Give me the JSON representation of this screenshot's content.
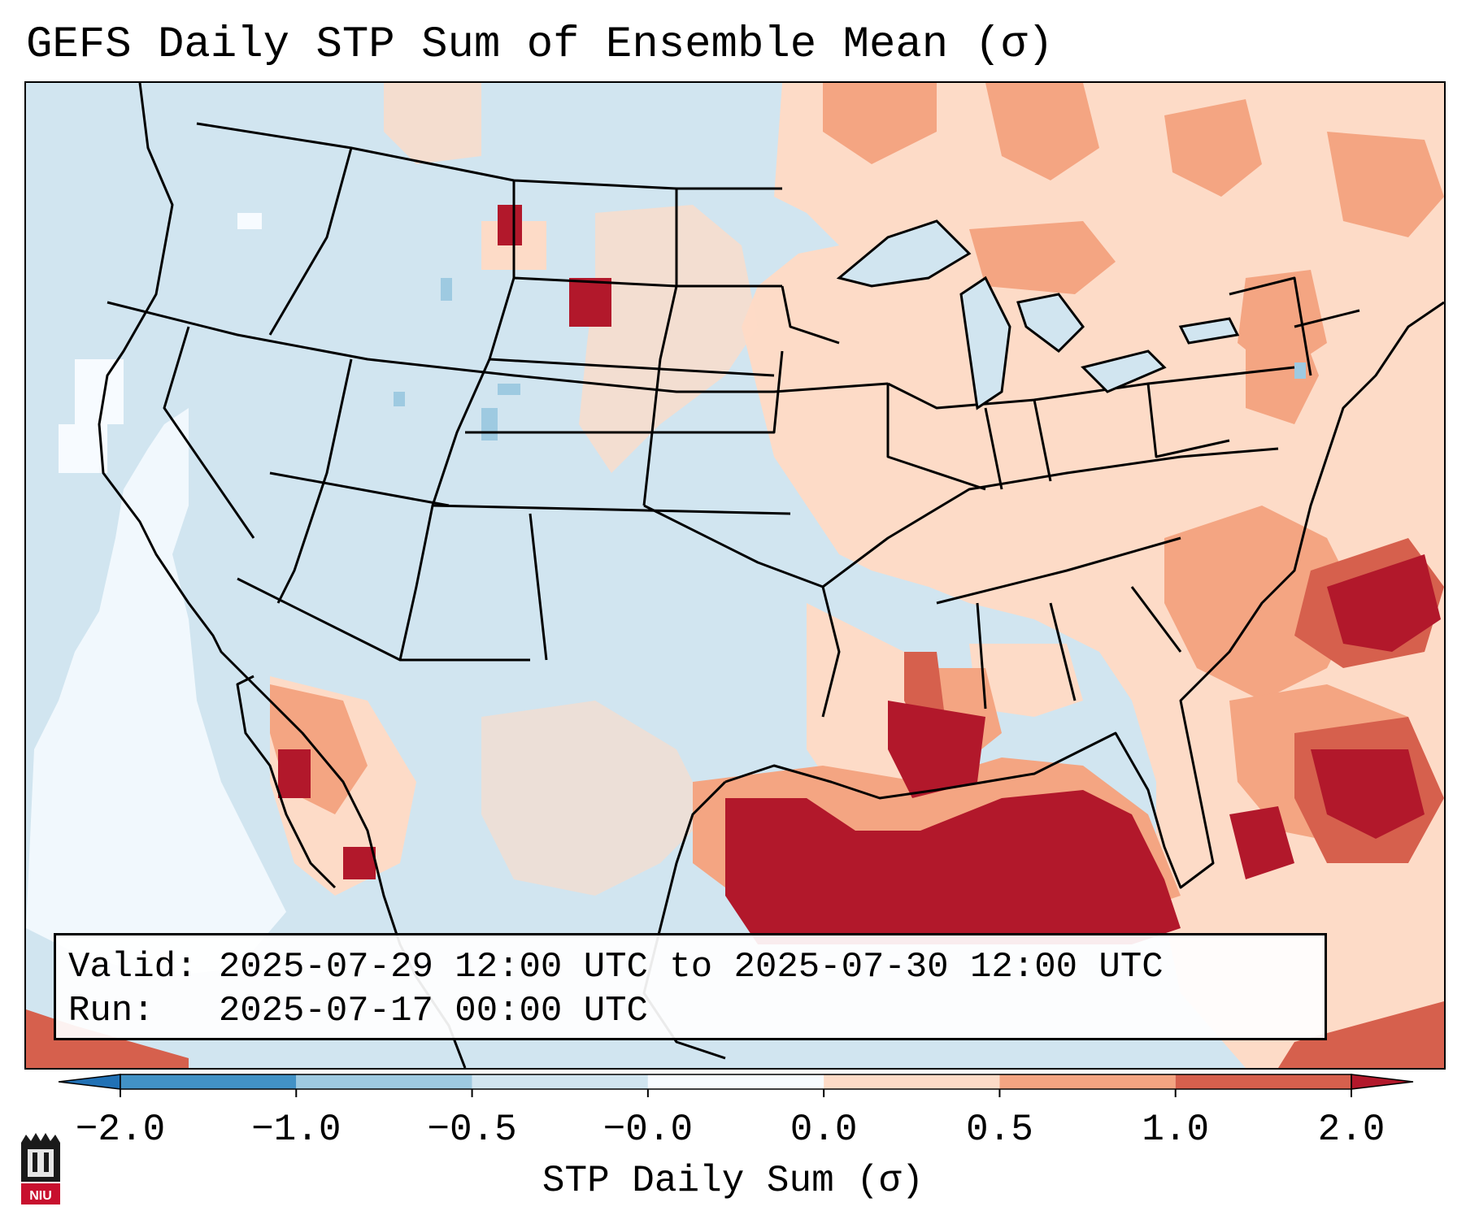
{
  "title": "GEFS Daily STP Sum of Ensemble Mean (σ)",
  "info": {
    "valid_label": "Valid:",
    "valid_range": "2025-07-29 12:00 UTC to 2025-07-30 12:00 UTC",
    "run_label": "Run:  ",
    "run_time": "2025-07-17 00:00 UTC"
  },
  "colorbar": {
    "label": "STP Daily Sum (σ)",
    "ticks": [
      "−2.0",
      "−1.0",
      "−0.5",
      "−0.0",
      "0.0",
      "0.5",
      "1.0",
      "2.0"
    ],
    "bins": [
      {
        "from": -2.0,
        "to": -1.0,
        "color": "#4292c6"
      },
      {
        "from": -1.0,
        "to": -0.5,
        "color": "#9ecae1"
      },
      {
        "from": -0.5,
        "to": -0.0,
        "color": "#d1e5f0"
      },
      {
        "from": -0.0,
        "to": 0.0,
        "color": "#f7fbff"
      },
      {
        "from": 0.0,
        "to": 0.5,
        "color": "#fddbc7"
      },
      {
        "from": 0.5,
        "to": 1.0,
        "color": "#f4a582"
      },
      {
        "from": 1.0,
        "to": 2.0,
        "color": "#d6604d"
      }
    ],
    "extend_low_color": "#2171b5",
    "extend_high_color": "#b2182b"
  },
  "map": {
    "domain": "Contiguous United States",
    "background_class": "-0.5 to -0.0 (light blue)",
    "features": [
      "state borders",
      "national borders",
      "coastlines",
      "Great Lakes",
      "Gulf of Mexico",
      "Atlantic Ocean"
    ]
  },
  "logo": {
    "text": "NIU"
  }
}
